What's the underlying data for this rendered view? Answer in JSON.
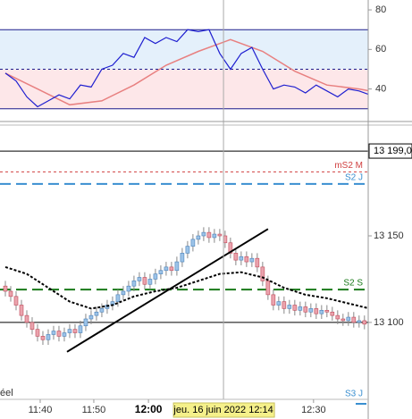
{
  "chart_data": {
    "type": "candlestick",
    "xlim": [
      -0.5,
      68.2
    ],
    "xticks": [
      {
        "value": 6.5,
        "label": "11:40"
      },
      {
        "value": 16.5,
        "label": "11:50"
      },
      {
        "value": 26.7,
        "label": "12:00"
      },
      {
        "value": 57.5,
        "label": "12:30"
      }
    ],
    "bold_xtick": "12:00",
    "crosshair": {
      "x": 40.7,
      "label": "jeu. 16 juin 2022 12:14"
    },
    "corner_text": "éel",
    "rsi": {
      "ylim": [
        24,
        85
      ],
      "yticks": [
        40,
        60,
        80
      ],
      "bands": [
        30,
        50,
        70
      ],
      "upper_fill": "#e4f0fb",
      "lower_fill": "#fde7e9",
      "band_color": "#1c1c8c",
      "series": [
        {
          "color": "#1f1fd0",
          "x": [
            0,
            2,
            4,
            6,
            8,
            10,
            12,
            14,
            16,
            18,
            20,
            22,
            24,
            26,
            28,
            30,
            32,
            34,
            36,
            38,
            40,
            42,
            44,
            46,
            48,
            50,
            52,
            54,
            56,
            58,
            60,
            62,
            64,
            66,
            68
          ],
          "values": [
            48,
            44,
            36,
            31,
            34,
            37,
            35,
            42,
            41,
            50,
            52,
            58,
            56,
            66,
            63,
            66,
            64,
            70,
            69,
            70,
            58,
            50,
            58,
            61,
            50,
            40,
            42,
            41,
            38,
            42,
            39,
            36,
            40,
            39,
            37
          ]
        },
        {
          "color": "#e88080",
          "x": [
            0,
            6,
            12,
            18,
            24,
            30,
            36,
            42,
            48,
            54,
            60,
            66,
            68
          ],
          "values": [
            48,
            40,
            32,
            34,
            42,
            52,
            59,
            65,
            59,
            49,
            42,
            40,
            39
          ]
        }
      ]
    },
    "price": {
      "ylim": [
        13054,
        13214
      ],
      "yticks": [
        {
          "value": 13100,
          "label": "13 100"
        },
        {
          "value": 13150,
          "label": "13 150"
        }
      ],
      "up_color": "#9cc3e8",
      "up_border": "#4a80b8",
      "down_color": "#eaa3ad",
      "down_border": "#c04a5a",
      "opens": [
        13121,
        13118,
        13115,
        13110,
        13104,
        13100,
        13096,
        13092,
        13090,
        13093,
        13095,
        13092,
        13094,
        13096,
        13094,
        13098,
        13102,
        13104,
        13106,
        13108,
        13110,
        13112,
        13116,
        13118,
        13121,
        13124,
        13126,
        13122,
        13125,
        13128,
        13130,
        13132,
        13130,
        13135,
        13140,
        13144,
        13148,
        13150,
        13152,
        13149,
        13151,
        13150,
        13146,
        13140,
        13136,
        13138,
        13135,
        13137,
        13132,
        13124,
        13116,
        13110,
        13112,
        13108,
        13110,
        13107,
        13109,
        13106,
        13108,
        13105,
        13107,
        13106,
        13104,
        13102,
        13101,
        13103,
        13100,
        13101,
        13099
      ],
      "highs": [
        13124,
        13121,
        13118,
        13113,
        13107,
        13103,
        13099,
        13095,
        13096,
        13098,
        13098,
        13097,
        13099,
        13099,
        13101,
        13105,
        13107,
        13109,
        13111,
        13113,
        13115,
        13119,
        13121,
        13124,
        13127,
        13129,
        13129,
        13128,
        13131,
        13133,
        13135,
        13135,
        13138,
        13143,
        13147,
        13151,
        13153,
        13155,
        13155,
        13154,
        13154,
        13153,
        13149,
        13143,
        13141,
        13141,
        13140,
        13140,
        13135,
        13127,
        13119,
        13115,
        13115,
        13113,
        13113,
        13112,
        13112,
        13111,
        13111,
        13110,
        13110,
        13109,
        13107,
        13105,
        13106,
        13106,
        13104,
        13104,
        13103
      ],
      "lows": [
        13115,
        13112,
        13107,
        13101,
        13097,
        13093,
        13089,
        13087,
        13087,
        13090,
        13089,
        13089,
        13091,
        13091,
        13091,
        13095,
        13099,
        13101,
        13103,
        13105,
        13107,
        13109,
        13113,
        13115,
        13118,
        13121,
        13119,
        13119,
        13122,
        13125,
        13127,
        13127,
        13127,
        13132,
        13137,
        13141,
        13145,
        13147,
        13146,
        13146,
        13147,
        13143,
        13137,
        13133,
        13133,
        13132,
        13132,
        13129,
        13121,
        13113,
        13107,
        13107,
        13105,
        13105,
        13104,
        13104,
        13103,
        13103,
        13102,
        13102,
        13103,
        13101,
        13099,
        13098,
        13098,
        13097,
        13097,
        13096,
        13096
      ],
      "closes": [
        13118,
        13115,
        13110,
        13104,
        13100,
        13096,
        13092,
        13090,
        13093,
        13095,
        13092,
        13094,
        13096,
        13094,
        13098,
        13102,
        13104,
        13106,
        13108,
        13110,
        13112,
        13116,
        13118,
        13121,
        13124,
        13126,
        13122,
        13125,
        13128,
        13130,
        13132,
        13130,
        13135,
        13140,
        13144,
        13148,
        13150,
        13152,
        13149,
        13151,
        13150,
        13146,
        13140,
        13136,
        13138,
        13135,
        13137,
        13132,
        13124,
        13116,
        13110,
        13112,
        13108,
        13110,
        13107,
        13109,
        13106,
        13108,
        13105,
        13107,
        13106,
        13104,
        13102,
        13101,
        13103,
        13100,
        13101,
        13099,
        13100
      ],
      "ma": {
        "color": "#000000",
        "x": [
          0,
          4,
          8,
          12,
          16,
          20,
          24,
          28,
          32,
          36,
          40,
          44,
          48,
          52,
          56,
          60,
          64,
          68
        ],
        "values": [
          13132,
          13128,
          13120,
          13112,
          13108,
          13110,
          13115,
          13118,
          13120,
          13124,
          13128,
          13129,
          13126,
          13120,
          13116,
          13114,
          13111,
          13108
        ]
      },
      "trendline": {
        "color": "#000000",
        "x": [
          11.5,
          49
        ],
        "values": [
          13083,
          13154
        ]
      },
      "levels": [
        {
          "name": "13 199,0",
          "value": 13199,
          "color": "#000000",
          "style": "solid"
        },
        {
          "name": "mS2 M",
          "value": 13187,
          "color": "#d04040",
          "style": "dotted"
        },
        {
          "name": "S2 J",
          "value": 13180,
          "color": "#3a8fd0",
          "style": "dashed"
        },
        {
          "name": "S2 S",
          "value": 13119,
          "color": "#1a7a1a",
          "style": "dashed"
        },
        {
          "value": 13100,
          "color": "#000000",
          "style": "solid"
        },
        {
          "name": "S3 J",
          "value": 13059,
          "color": "#3a8fd0",
          "style": "dashed"
        }
      ]
    }
  }
}
